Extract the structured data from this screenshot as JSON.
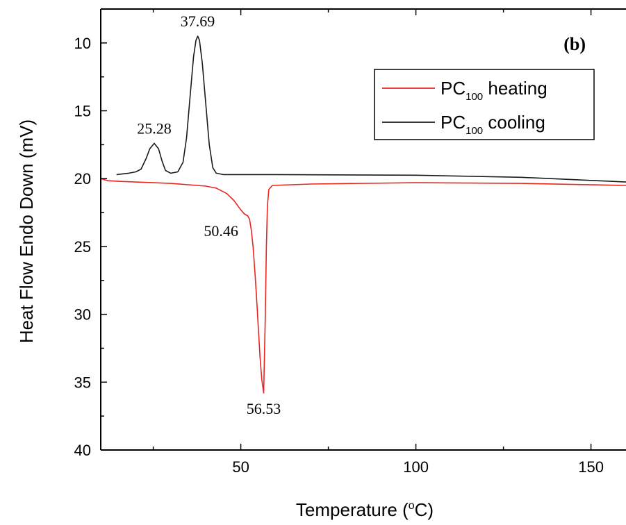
{
  "chart_data": {
    "type": "line",
    "panel_label": "(b)",
    "xlabel": "Temperature (°C)",
    "xlabel_parts": {
      "prefix": "Temperature (",
      "sup": "o",
      "suffix": "C)"
    },
    "ylabel": "Heat Flow Endo Down (mV)",
    "xlim": [
      10,
      160
    ],
    "ylim": [
      40,
      7.5
    ],
    "y_inverted": true,
    "x_ticks": [
      50,
      100,
      150
    ],
    "y_ticks": [
      10,
      15,
      20,
      25,
      30,
      35,
      40
    ],
    "grid": false,
    "legend_position": "top-right",
    "series": [
      {
        "name": "PC100 heating",
        "legend": {
          "base": "PC",
          "sub": "100",
          "rest": " heating"
        },
        "color": "#e8251e",
        "points": [
          [
            10,
            20.0
          ],
          [
            12,
            20.15
          ],
          [
            15,
            20.2
          ],
          [
            20,
            20.25
          ],
          [
            25,
            20.3
          ],
          [
            30,
            20.35
          ],
          [
            35,
            20.45
          ],
          [
            40,
            20.55
          ],
          [
            43,
            20.7
          ],
          [
            46,
            21.1
          ],
          [
            48,
            21.6
          ],
          [
            50,
            22.3
          ],
          [
            51,
            22.6
          ],
          [
            52,
            22.75
          ],
          [
            52.5,
            23.0
          ],
          [
            53,
            23.8
          ],
          [
            53.5,
            25.0
          ],
          [
            54,
            26.8
          ],
          [
            54.5,
            28.8
          ],
          [
            55,
            31.0
          ],
          [
            55.5,
            33.2
          ],
          [
            56,
            34.8
          ],
          [
            56.53,
            35.8
          ],
          [
            57,
            30.0
          ],
          [
            57.3,
            25.0
          ],
          [
            57.6,
            22.0
          ],
          [
            58,
            20.8
          ],
          [
            59,
            20.5
          ],
          [
            70,
            20.4
          ],
          [
            100,
            20.3
          ],
          [
            130,
            20.35
          ],
          [
            160,
            20.5
          ]
        ]
      },
      {
        "name": "PC100 cooling",
        "legend": {
          "base": "PC",
          "sub": "100",
          "rest": " cooling"
        },
        "color": "#1a1a1a",
        "points": [
          [
            14.5,
            19.7
          ],
          [
            18,
            19.6
          ],
          [
            20,
            19.5
          ],
          [
            21.5,
            19.3
          ],
          [
            23,
            18.5
          ],
          [
            24,
            17.8
          ],
          [
            25.28,
            17.4
          ],
          [
            26.5,
            17.8
          ],
          [
            27.5,
            18.7
          ],
          [
            28.5,
            19.4
          ],
          [
            30,
            19.6
          ],
          [
            32,
            19.5
          ],
          [
            33.5,
            18.8
          ],
          [
            34.5,
            17.0
          ],
          [
            35.5,
            14.0
          ],
          [
            36.5,
            11.0
          ],
          [
            37.2,
            9.8
          ],
          [
            37.69,
            9.5
          ],
          [
            38.2,
            9.8
          ],
          [
            39,
            11.5
          ],
          [
            40,
            14.5
          ],
          [
            41,
            17.5
          ],
          [
            42,
            19.2
          ],
          [
            43,
            19.6
          ],
          [
            45,
            19.7
          ],
          [
            60,
            19.7
          ],
          [
            100,
            19.75
          ],
          [
            130,
            19.9
          ],
          [
            160,
            20.25
          ]
        ]
      }
    ],
    "annotations": [
      {
        "text": "37.69",
        "x": 37.69,
        "y": 9.5,
        "anchor": "above"
      },
      {
        "text": "25.28",
        "x": 25.28,
        "y": 17.4,
        "anchor": "above"
      },
      {
        "text": "50.46",
        "x": 50.46,
        "y": 22.6,
        "anchor": "below-left"
      },
      {
        "text": "56.53",
        "x": 56.53,
        "y": 35.8,
        "anchor": "below"
      }
    ]
  }
}
